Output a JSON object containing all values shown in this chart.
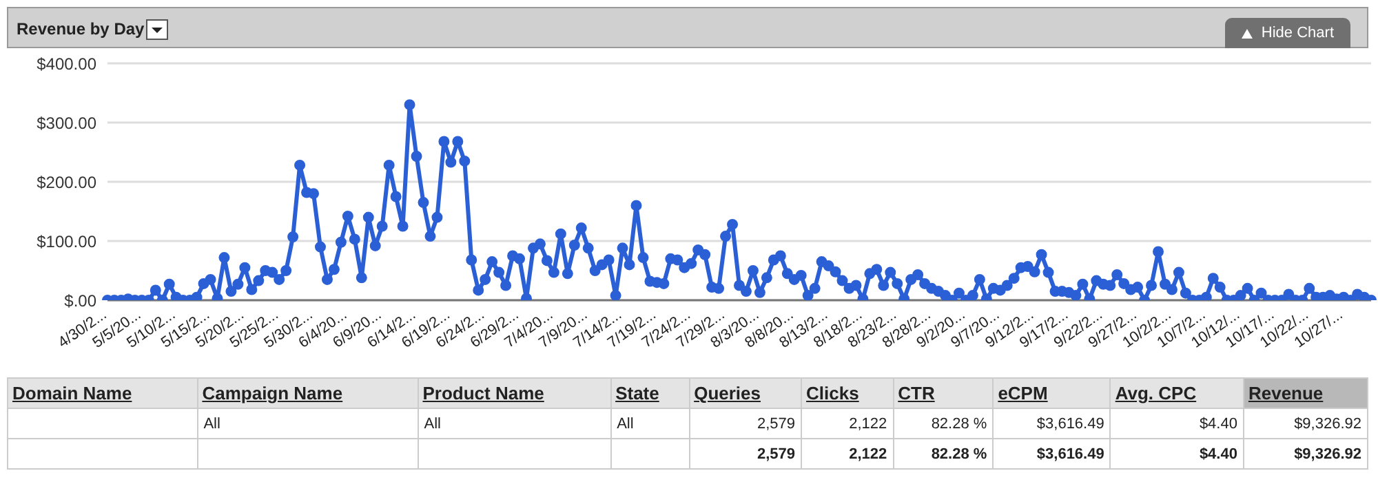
{
  "chart_data": [
    {
      "type": "line",
      "title": "Revenue by Day",
      "annotations": [
        "Hide Chart"
      ],
      "categories": [
        "4/30/2...",
        null,
        null,
        null,
        null,
        "5/5/20...",
        null,
        null,
        null,
        null,
        "5/10/2...",
        null,
        null,
        null,
        null,
        "5/15/2...",
        null,
        null,
        null,
        null,
        "5/20/2...",
        null,
        null,
        null,
        null,
        "5/25/2...",
        null,
        null,
        null,
        null,
        "5/30/2...",
        null,
        null,
        null,
        null,
        "6/4/20...",
        null,
        null,
        null,
        null,
        "6/9/20...",
        null,
        null,
        null,
        null,
        "6/14/2...",
        null,
        null,
        null,
        null,
        "6/19/2...",
        null,
        null,
        null,
        null,
        "6/24/2...",
        null,
        null,
        null,
        null,
        "6/29/2...",
        null,
        null,
        null,
        null,
        "7/4/20...",
        null,
        null,
        null,
        null,
        "7/9/20...",
        null,
        null,
        null,
        null,
        "7/14/2...",
        null,
        null,
        null,
        null,
        "7/19/2...",
        null,
        null,
        null,
        null,
        "7/24/2...",
        null,
        null,
        null,
        null,
        "7/29/2...",
        null,
        null,
        null,
        null,
        "8/3/20...",
        null,
        null,
        null,
        null,
        "8/8/20...",
        null,
        null,
        null,
        null,
        "8/13/2...",
        null,
        null,
        null,
        null,
        "8/18/2...",
        null,
        null,
        null,
        null,
        "8/23/2...",
        null,
        null,
        null,
        null,
        "8/28/2...",
        null,
        null,
        null,
        null,
        "9/2/20...",
        null,
        null,
        null,
        null,
        "9/7/20...",
        null,
        null,
        null,
        null,
        "9/12/2...",
        null,
        null,
        null,
        null,
        "9/17/2...",
        null,
        null,
        null,
        null,
        "9/22/2...",
        null,
        null,
        null,
        null,
        "9/27/2...",
        null,
        null,
        null,
        null,
        "10/2/2...",
        null,
        null,
        null,
        null,
        "10/7/2...",
        null,
        null,
        null,
        null,
        "10/12/...",
        null,
        null,
        null,
        null,
        "10/17/...",
        null,
        null,
        null,
        null,
        "10/22/...",
        null,
        null,
        null,
        null,
        "10/27/...",
        null,
        null,
        null,
        null
      ],
      "series": [
        {
          "color": "#2b5fd6",
          "values": [
            0,
            0,
            0,
            2,
            0,
            0,
            0,
            17,
            0,
            27,
            5,
            0,
            0,
            5,
            28,
            35,
            3,
            72,
            15,
            27,
            55,
            18,
            33,
            50,
            47,
            35,
            50,
            107,
            228,
            182,
            180,
            90,
            35,
            52,
            98,
            142,
            103,
            38,
            140,
            92,
            125,
            228,
            175,
            125,
            330,
            243,
            165,
            108,
            140,
            268,
            233,
            268,
            235,
            68,
            17,
            35,
            65,
            47,
            25,
            75,
            70,
            3,
            88,
            95,
            67,
            47,
            112,
            45,
            93,
            122,
            88,
            50,
            60,
            68,
            8,
            88,
            60,
            160,
            72,
            32,
            30,
            28,
            70,
            68,
            55,
            62,
            85,
            77,
            22,
            20,
            108,
            128,
            25,
            15,
            50,
            13,
            38,
            68,
            75,
            45,
            35,
            42,
            8,
            20,
            65,
            58,
            48,
            33,
            20,
            25,
            2,
            45,
            52,
            25,
            47,
            28,
            2,
            35,
            43,
            28,
            20,
            15,
            8,
            0,
            12,
            0,
            8,
            35,
            2,
            20,
            17,
            25,
            37,
            55,
            57,
            48,
            77,
            47,
            15,
            15,
            13,
            8,
            27,
            2,
            33,
            27,
            25,
            43,
            28,
            18,
            22,
            0,
            25,
            82,
            27,
            18,
            47,
            12,
            0,
            0,
            5,
            37,
            22,
            0,
            0,
            8,
            20,
            0,
            12,
            0,
            0,
            0,
            10,
            0,
            0,
            20,
            5,
            5,
            8,
            2,
            5,
            0,
            10,
            5,
            0
          ]
        }
      ],
      "ylim": [
        0,
        400
      ],
      "yticks": [
        {
          "value": 0,
          "label": "$.00"
        },
        {
          "value": 100,
          "label": "$100.00"
        },
        {
          "value": 200,
          "label": "$200.00"
        },
        {
          "value": 300,
          "label": "$300.00"
        },
        {
          "value": 400,
          "label": "$400.00"
        }
      ],
      "grid": "y",
      "marker": "circle",
      "line_style": "solid"
    },
    {
      "type": "other",
      "categories": [
        "Domain Name",
        "Campaign Name",
        "Product Name",
        "State",
        "Queries",
        "Clicks",
        "CTR",
        "eCPM",
        "Avg. CPC",
        "Revenue"
      ],
      "cell_labels": [
        [
          null,
          "All",
          "All",
          "All",
          "2,579",
          "2,122",
          "82.28 %",
          "$3,616.49",
          "$4.40",
          "$9,326.92"
        ],
        [
          null,
          null,
          null,
          null,
          "2,579",
          "2,122",
          "82.28 %",
          "$3,616.49",
          "$4.40",
          "$9,326.92"
        ]
      ]
    }
  ]
}
